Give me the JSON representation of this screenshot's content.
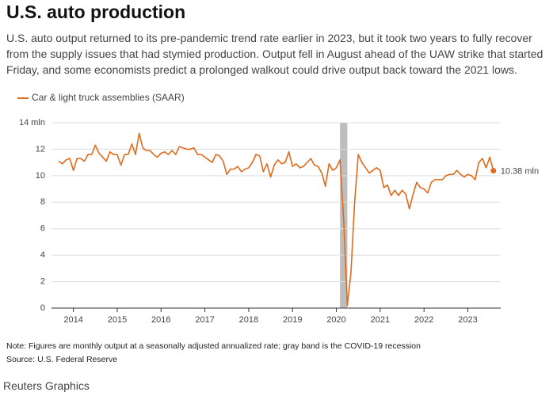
{
  "chart_data": {
    "type": "line",
    "title": "U.S. auto production",
    "subtitle": "U.S. auto output returned to its pre-pandemic trend rate earlier in 2023, but it took two years to fully recover from the supply issues that had stymied production. Output fell in August ahead of the UAW strike that started Friday, and some economists predict a prolonged walkout could drive output back toward the 2021 lows.",
    "note": "Note: Figures are monthly output at a seasonally adjusted annualized rate; gray band is the COVID-19 recession",
    "source": "Source: U.S. Federal Reserve",
    "credit": "Reuters Graphics",
    "end_label": "10.38 mln",
    "legend": "top-left",
    "grid": true,
    "recession": [
      "2020-02",
      "2020-04"
    ],
    "x": [
      "2013-09",
      "2013-10",
      "2013-11",
      "2013-12",
      "2014-01",
      "2014-02",
      "2014-03",
      "2014-04",
      "2014-05",
      "2014-06",
      "2014-07",
      "2014-08",
      "2014-09",
      "2014-10",
      "2014-11",
      "2014-12",
      "2015-01",
      "2015-02",
      "2015-03",
      "2015-04",
      "2015-05",
      "2015-06",
      "2015-07",
      "2015-08",
      "2015-09",
      "2015-10",
      "2015-11",
      "2015-12",
      "2016-01",
      "2016-02",
      "2016-03",
      "2016-04",
      "2016-05",
      "2016-06",
      "2016-07",
      "2016-08",
      "2016-09",
      "2016-10",
      "2016-11",
      "2016-12",
      "2017-01",
      "2017-02",
      "2017-03",
      "2017-04",
      "2017-05",
      "2017-06",
      "2017-07",
      "2017-08",
      "2017-09",
      "2017-10",
      "2017-11",
      "2017-12",
      "2018-01",
      "2018-02",
      "2018-03",
      "2018-04",
      "2018-05",
      "2018-06",
      "2018-07",
      "2018-08",
      "2018-09",
      "2018-10",
      "2018-11",
      "2018-12",
      "2019-01",
      "2019-02",
      "2019-03",
      "2019-04",
      "2019-05",
      "2019-06",
      "2019-07",
      "2019-08",
      "2019-09",
      "2019-10",
      "2019-11",
      "2019-12",
      "2020-01",
      "2020-02",
      "2020-03",
      "2020-04",
      "2020-05",
      "2020-06",
      "2020-07",
      "2020-08",
      "2020-09",
      "2020-10",
      "2020-11",
      "2020-12",
      "2021-01",
      "2021-02",
      "2021-03",
      "2021-04",
      "2021-05",
      "2021-06",
      "2021-07",
      "2021-08",
      "2021-09",
      "2021-10",
      "2021-11",
      "2021-12",
      "2022-01",
      "2022-02",
      "2022-03",
      "2022-04",
      "2022-05",
      "2022-06",
      "2022-07",
      "2022-08",
      "2022-09",
      "2022-10",
      "2022-11",
      "2022-12",
      "2023-01",
      "2023-02",
      "2023-03",
      "2023-04",
      "2023-05",
      "2023-06",
      "2023-07",
      "2023-08"
    ],
    "series": [
      {
        "name": "Car & light truck assemblies (SAAR)",
        "color": "#e06a1b",
        "values": [
          11.1,
          10.9,
          11.2,
          11.3,
          10.4,
          11.3,
          11.3,
          11.1,
          11.6,
          11.6,
          12.3,
          11.7,
          11.4,
          11.1,
          11.8,
          11.6,
          11.6,
          10.8,
          11.6,
          11.6,
          12.4,
          11.6,
          13.2,
          12.1,
          11.9,
          11.9,
          11.6,
          11.4,
          11.7,
          11.8,
          11.6,
          11.9,
          11.6,
          12.2,
          12.1,
          12.0,
          12.0,
          12.1,
          11.6,
          11.6,
          11.4,
          11.2,
          11.0,
          11.6,
          11.5,
          11.1,
          10.1,
          10.5,
          10.5,
          10.7,
          10.3,
          10.5,
          10.6,
          11.0,
          11.6,
          11.5,
          10.3,
          10.9,
          9.9,
          10.8,
          11.2,
          10.9,
          11.0,
          11.8,
          10.7,
          10.9,
          10.6,
          10.7,
          11.0,
          11.3,
          10.8,
          10.7,
          10.2,
          9.2,
          10.9,
          10.4,
          10.6,
          11.2,
          6.7,
          0.2,
          2.7,
          8.0,
          11.6,
          11.0,
          10.6,
          10.2,
          10.4,
          10.6,
          10.4,
          9.1,
          9.3,
          8.5,
          8.9,
          8.5,
          8.9,
          8.6,
          7.5,
          8.6,
          9.5,
          9.1,
          9.0,
          8.7,
          9.5,
          9.7,
          9.7,
          9.7,
          10.0,
          10.1,
          10.1,
          10.4,
          10.1,
          9.9,
          10.1,
          10.0,
          9.7,
          11.0,
          11.3,
          10.6,
          11.4,
          10.38
        ]
      }
    ],
    "xlim": [
      "2013-07",
      "2023-10"
    ],
    "xticks": [
      {
        "value": "2014-01",
        "label": "2014"
      },
      {
        "value": "2015-01",
        "label": "2015"
      },
      {
        "value": "2016-01",
        "label": "2016"
      },
      {
        "value": "2017-01",
        "label": "2017"
      },
      {
        "value": "2018-01",
        "label": "2018"
      },
      {
        "value": "2019-01",
        "label": "2019"
      },
      {
        "value": "2020-01",
        "label": "2020"
      },
      {
        "value": "2021-01",
        "label": "2021"
      },
      {
        "value": "2022-01",
        "label": "2022"
      },
      {
        "value": "2023-01",
        "label": "2023"
      }
    ],
    "ylim": [
      0,
      14
    ],
    "yticks": [
      0,
      2,
      4,
      6,
      8,
      10,
      12,
      {
        "value": 14,
        "label": "14 mln"
      }
    ]
  }
}
